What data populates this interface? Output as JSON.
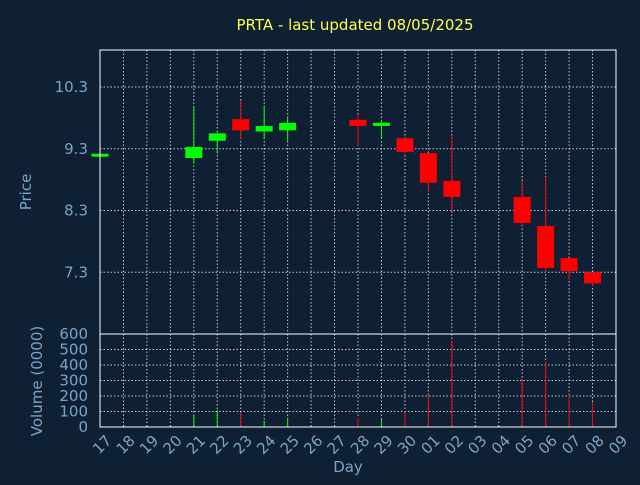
{
  "chart_data": {
    "type": "candlestick",
    "title": "PRTA - last updated 08/05/2025",
    "xlabel": "Day",
    "price_panel": {
      "ylabel": "Price",
      "ylim": [
        6.3,
        10.9
      ],
      "yticks": [
        "10.3",
        "9.3",
        "8.3",
        "7.3"
      ],
      "ytick_values": [
        10.3,
        9.3,
        8.3,
        7.3
      ]
    },
    "volume_panel": {
      "ylabel": "Volume (0000)",
      "ylim": [
        0,
        600
      ],
      "yticks": [
        "600",
        "500",
        "400",
        "300",
        "200",
        "100",
        "0"
      ],
      "ytick_values": [
        600,
        500,
        400,
        300,
        200,
        100,
        0
      ]
    },
    "x_ticks": [
      "17",
      "18",
      "19",
      "20",
      "21",
      "22",
      "23",
      "24",
      "25",
      "26",
      "27",
      "28",
      "29",
      "30",
      "01",
      "02",
      "03",
      "04",
      "05",
      "06",
      "07",
      "08",
      "09"
    ],
    "grid": true,
    "colors": {
      "up": "#00ff00",
      "down": "#ff0000",
      "background": "#0f2035",
      "title": "#ffff4d",
      "axis": "#7aa4c6"
    },
    "candles": [
      {
        "day": "17",
        "open": 9.2,
        "high": 9.22,
        "low": 9.18,
        "close": 9.22,
        "volume": 0
      },
      {
        "day": "21",
        "open": 9.15,
        "high": 9.97,
        "low": 9.06,
        "close": 9.33,
        "volume": 80
      },
      {
        "day": "22",
        "open": 9.43,
        "high": 9.58,
        "low": 9.22,
        "close": 9.55,
        "volume": 110
      },
      {
        "day": "23",
        "open": 9.78,
        "high": 10.08,
        "low": 9.45,
        "close": 9.6,
        "volume": 90
      },
      {
        "day": "24",
        "open": 9.58,
        "high": 10.0,
        "low": 9.46,
        "close": 9.67,
        "volume": 40
      },
      {
        "day": "25",
        "open": 9.6,
        "high": 9.82,
        "low": 9.43,
        "close": 9.72,
        "volume": 60
      },
      {
        "day": "28",
        "open": 9.77,
        "high": 9.85,
        "low": 9.35,
        "close": 9.67,
        "volume": 60
      },
      {
        "day": "29",
        "open": 9.67,
        "high": 9.77,
        "low": 9.47,
        "close": 9.72,
        "volume": 50
      },
      {
        "day": "30",
        "open": 9.47,
        "high": 9.47,
        "low": 9.22,
        "close": 9.25,
        "volume": 100
      },
      {
        "day": "01",
        "open": 9.23,
        "high": 9.23,
        "low": 8.6,
        "close": 8.75,
        "volume": 210
      },
      {
        "day": "02",
        "open": 8.78,
        "high": 9.5,
        "low": 8.3,
        "close": 8.52,
        "volume": 560
      },
      {
        "day": "05",
        "open": 8.52,
        "high": 8.78,
        "low": 8.05,
        "close": 8.1,
        "volume": 310
      },
      {
        "day": "06",
        "open": 8.05,
        "high": 8.85,
        "low": 7.3,
        "close": 7.37,
        "volume": 420
      },
      {
        "day": "07",
        "open": 7.53,
        "high": 7.53,
        "low": 7.18,
        "close": 7.32,
        "volume": 210
      },
      {
        "day": "08",
        "open": 7.3,
        "high": 7.3,
        "low": 7.08,
        "close": 7.12,
        "volume": 160
      }
    ]
  }
}
